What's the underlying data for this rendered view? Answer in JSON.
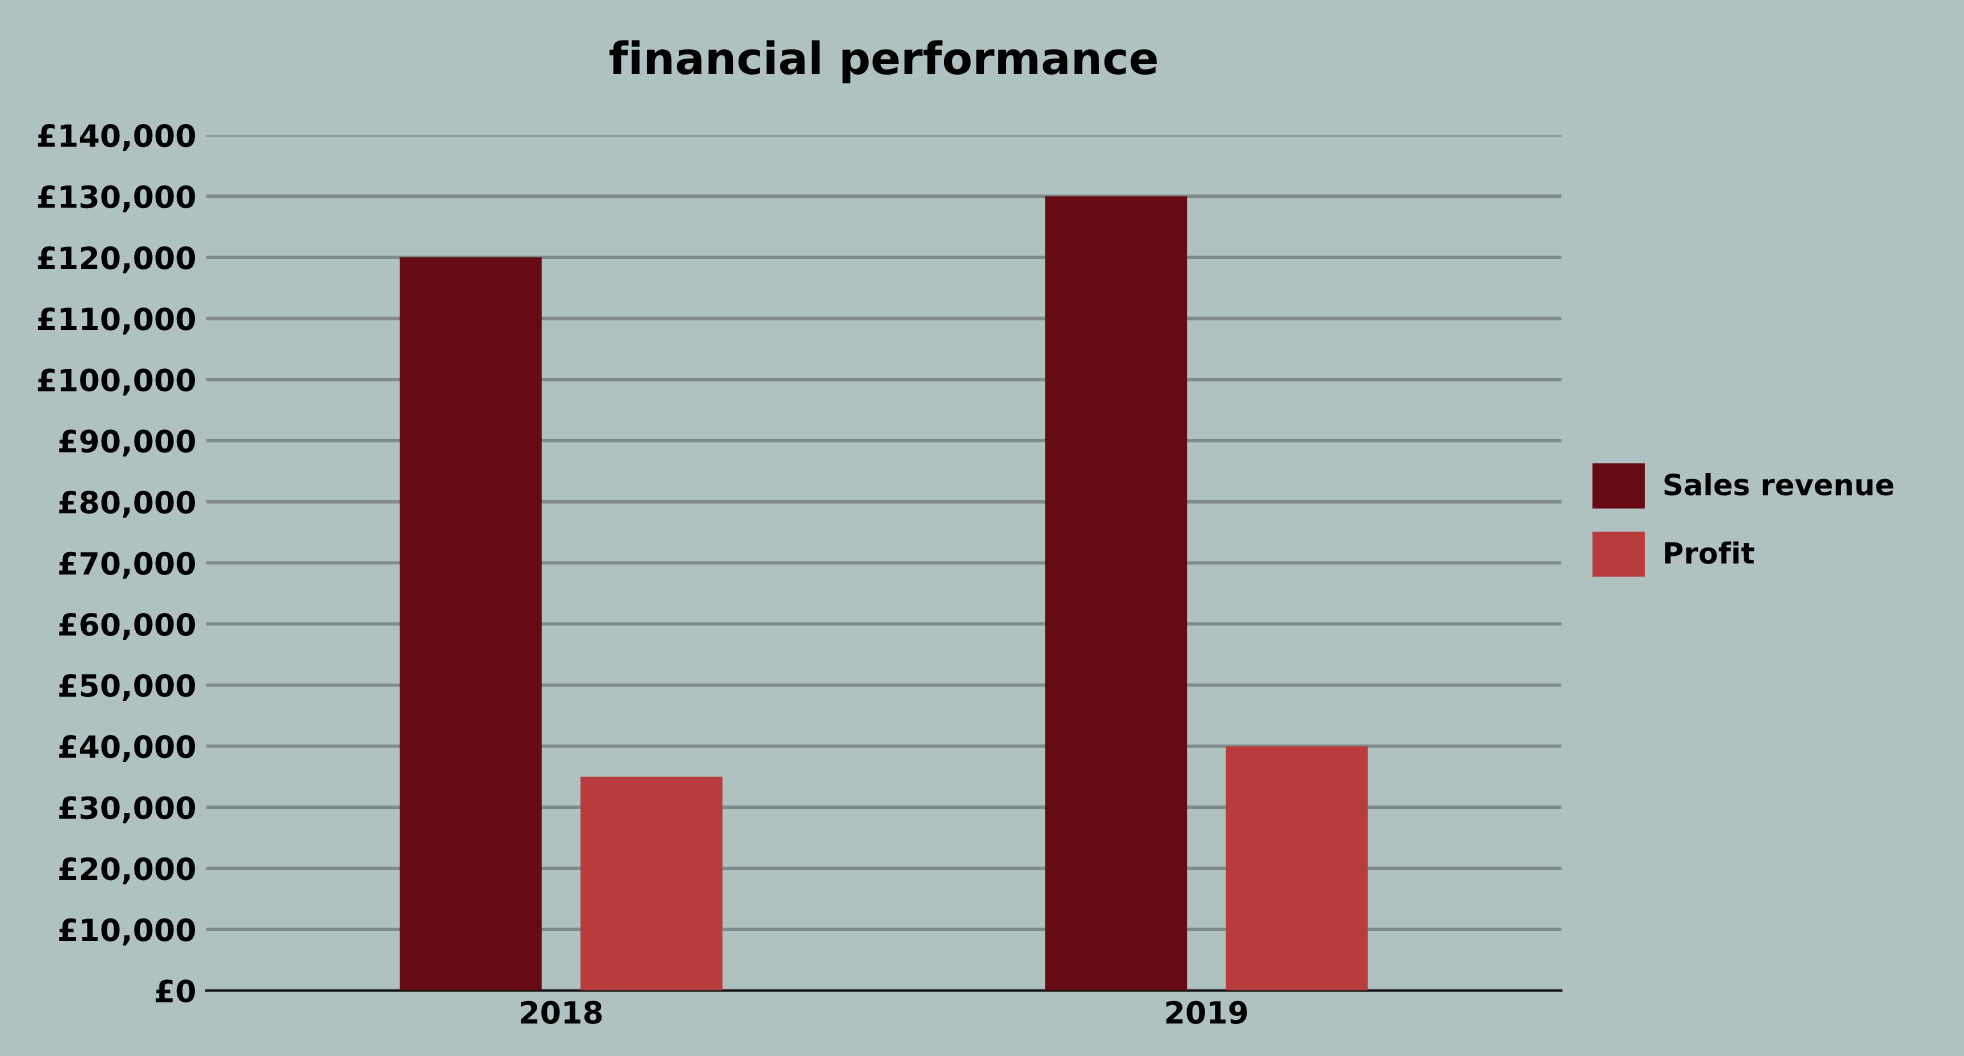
{
  "chart_data": {
    "type": "bar",
    "title": "financial performance",
    "categories": [
      "2018",
      "2019"
    ],
    "series": [
      {
        "name": "Sales revenue",
        "color": "#660a14",
        "values": [
          120000,
          130000
        ]
      },
      {
        "name": "Profit",
        "color": "#b83c3c",
        "values": [
          35000,
          40000
        ]
      }
    ],
    "ylim": [
      0,
      140000
    ],
    "yticks": [
      {
        "value": 0,
        "label": "£0"
      },
      {
        "value": 10000,
        "label": "£10,000"
      },
      {
        "value": 20000,
        "label": "£20,000"
      },
      {
        "value": 30000,
        "label": "£30,000"
      },
      {
        "value": 40000,
        "label": "£40,000"
      },
      {
        "value": 50000,
        "label": "£50,000"
      },
      {
        "value": 60000,
        "label": "£60,000"
      },
      {
        "value": 70000,
        "label": "£70,000"
      },
      {
        "value": 80000,
        "label": "£80,000"
      },
      {
        "value": 90000,
        "label": "£90,000"
      },
      {
        "value": 100000,
        "label": "£100,000"
      },
      {
        "value": 110000,
        "label": "£110,000"
      },
      {
        "value": 120000,
        "label": "£120,000"
      },
      {
        "value": 130000,
        "label": "£130,000"
      },
      {
        "value": 140000,
        "label": "£140,000"
      }
    ],
    "grid": "y",
    "legend": "right"
  }
}
